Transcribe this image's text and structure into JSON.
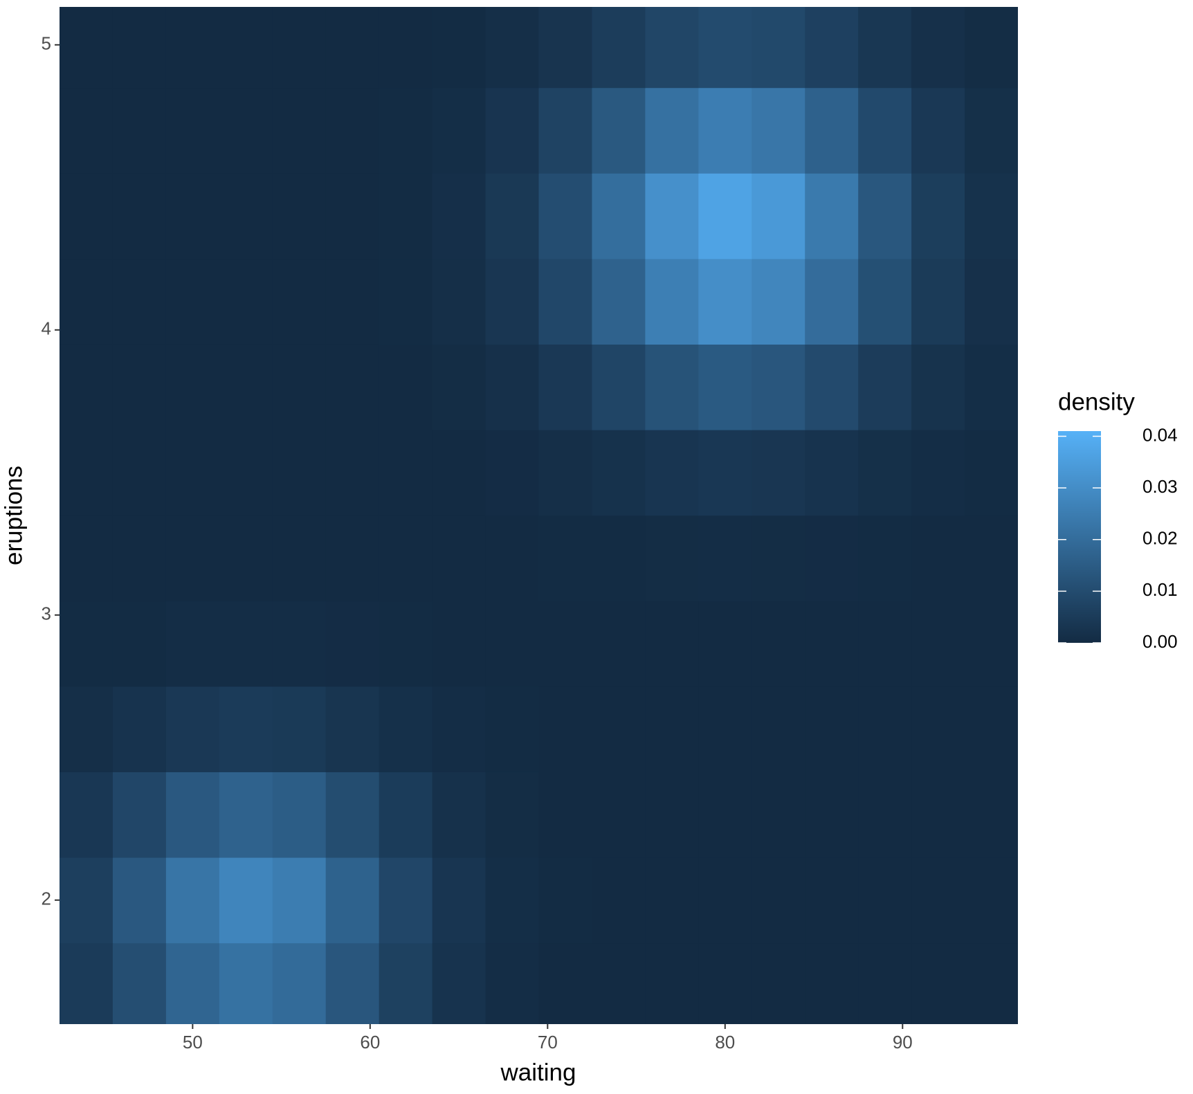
{
  "chart_data": {
    "type": "heatmap",
    "x_label": "waiting",
    "y_label": "eruptions",
    "xlim": [
      42.5,
      96.5
    ],
    "ylim": [
      1.565,
      5.133
    ],
    "xticks": [
      50,
      60,
      70,
      80,
      90
    ],
    "yticks": [
      2,
      3,
      4,
      5
    ],
    "x": [
      44,
      47,
      50,
      53,
      56,
      59,
      62,
      65,
      68,
      71,
      74,
      77,
      80,
      83,
      86,
      89,
      92,
      95
    ],
    "y": [
      1.7,
      2.0,
      2.3,
      2.6,
      2.9,
      3.2,
      3.5,
      3.8,
      4.1,
      4.4,
      4.7,
      5.0
    ],
    "values": [
      [
        0.0049,
        0.0108,
        0.0177,
        0.0216,
        0.0196,
        0.0132,
        0.0066,
        0.0024,
        0.0007,
        0.0001,
        0,
        0,
        0,
        0,
        0,
        0,
        0,
        0
      ],
      [
        0.0062,
        0.0138,
        0.0226,
        0.0276,
        0.025,
        0.0168,
        0.0084,
        0.0031,
        0.0009,
        0.0002,
        0,
        0,
        0,
        0,
        0,
        0,
        0,
        0
      ],
      [
        0.0038,
        0.0084,
        0.0139,
        0.0169,
        0.0153,
        0.0103,
        0.0052,
        0.0019,
        0.0005,
        0.0001,
        0,
        0,
        0,
        0,
        0,
        0,
        0,
        0
      ],
      [
        0.0011,
        0.0025,
        0.0041,
        0.005,
        0.0045,
        0.003,
        0.0015,
        0.0006,
        0.0002,
        0,
        0,
        0,
        0,
        0,
        0,
        0,
        0,
        0
      ],
      [
        0.0002,
        0.0003,
        0.0006,
        0.0007,
        0.0006,
        0.0004,
        0.0002,
        0.0001,
        0,
        0,
        0,
        0,
        0.0001,
        0,
        0,
        0,
        0,
        0
      ],
      [
        0,
        0,
        0,
        0,
        0,
        0,
        0,
        0,
        0.0001,
        0.0002,
        0.0003,
        0.0005,
        0.0006,
        0.0005,
        0.0004,
        0.0002,
        0.0001,
        0
      ],
      [
        0,
        0,
        0,
        0,
        0,
        0,
        0,
        0.0001,
        0.0004,
        0.0011,
        0.0021,
        0.0032,
        0.0038,
        0.0035,
        0.0025,
        0.0014,
        0.0006,
        0.0002
      ],
      [
        0,
        0,
        0,
        0,
        0,
        0,
        0.0001,
        0.0005,
        0.0016,
        0.0041,
        0.008,
        0.0121,
        0.0143,
        0.0132,
        0.0095,
        0.0053,
        0.0023,
        0.0008
      ],
      [
        0,
        0,
        0,
        0,
        0,
        0.0001,
        0.0003,
        0.0011,
        0.0035,
        0.0087,
        0.0169,
        0.0257,
        0.0304,
        0.0279,
        0.02,
        0.0112,
        0.0048,
        0.0016
      ],
      [
        0,
        0,
        0,
        0,
        0,
        0.0001,
        0.0003,
        0.0013,
        0.0042,
        0.0105,
        0.0204,
        0.031,
        0.0366,
        0.0337,
        0.0241,
        0.0135,
        0.0058,
        0.002
      ],
      [
        0,
        0,
        0,
        0,
        0,
        0,
        0.0002,
        0.0009,
        0.0029,
        0.0072,
        0.014,
        0.0213,
        0.0252,
        0.0231,
        0.0166,
        0.0093,
        0.004,
        0.0014
      ],
      [
        0,
        0,
        0,
        0,
        0,
        0,
        0.0001,
        0.0003,
        0.0011,
        0.0028,
        0.0055,
        0.0083,
        0.0099,
        0.0091,
        0.0065,
        0.0036,
        0.0016,
        0.0005
      ]
    ],
    "legend_title": "density",
    "color_scale": {
      "low": "#132B43",
      "high": "#56B1F7",
      "lim": [
        0,
        0.041
      ],
      "ticks": [
        {
          "value": 0,
          "label": "0.00"
        },
        {
          "value": 0.01,
          "label": "0.01"
        },
        {
          "value": 0.02,
          "label": "0.02"
        },
        {
          "value": 0.03,
          "label": "0.03"
        },
        {
          "value": 0.04,
          "label": "0.04"
        }
      ]
    }
  }
}
